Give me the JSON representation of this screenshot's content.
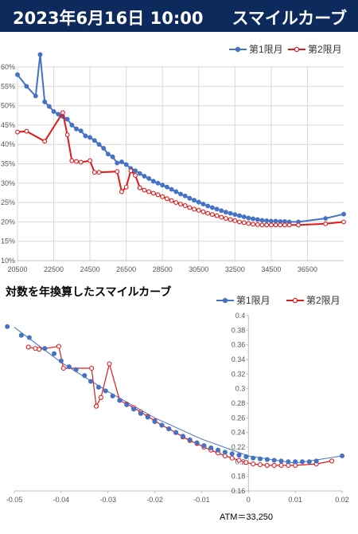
{
  "banner": {
    "date_text": "2023年6月16日 10:00",
    "title": "スマイルカーブ"
  },
  "colors": {
    "banner_bg": "#0d2a5c",
    "series1": "#4472c4",
    "series2": "#e0191b",
    "grid": "#d9d9d9"
  },
  "chart2_title": "対数を年換算したスマイルカーブ",
  "atm_label": "ATM＝33,250",
  "chart_data": [
    {
      "type": "line",
      "title": "",
      "xlabel": "",
      "ylabel": "",
      "xlim": [
        20500,
        38500
      ],
      "ylim": [
        10,
        60
      ],
      "x_ticks": [
        "20500",
        "22500",
        "24500",
        "26500",
        "28500",
        "30500",
        "32500",
        "34500",
        "36500"
      ],
      "y_ticks": [
        "10%",
        "15%",
        "20%",
        "25%",
        "30%",
        "35%",
        "40%",
        "45%",
        "50%",
        "55%",
        "60%"
      ],
      "legend_position": "top-right",
      "grid": true,
      "series": [
        {
          "name": "第1限月",
          "x": [
            20500,
            21000,
            21500,
            21750,
            22000,
            22250,
            22500,
            22750,
            23000,
            23250,
            23500,
            23750,
            24000,
            24250,
            24500,
            24750,
            25000,
            25250,
            25500,
            25750,
            26000,
            26250,
            26500,
            26750,
            27000,
            27250,
            27500,
            27750,
            28000,
            28250,
            28500,
            28750,
            29000,
            29250,
            29500,
            29750,
            30000,
            30250,
            30500,
            30750,
            31000,
            31250,
            31500,
            31750,
            32000,
            32250,
            32500,
            32750,
            33000,
            33250,
            33500,
            33750,
            34000,
            34250,
            34500,
            34750,
            35000,
            35250,
            35500,
            36000,
            37500,
            38500
          ],
          "values": [
            58,
            55,
            52.5,
            63.2,
            51,
            49.8,
            48.5,
            47.8,
            47.2,
            46.5,
            45,
            44,
            43.5,
            42.2,
            41.8,
            41,
            40,
            39,
            37.5,
            36.8,
            35.2,
            35.5,
            34.8,
            33.8,
            33.2,
            32.5,
            31.8,
            31.2,
            30.5,
            30,
            29.5,
            29,
            28.4,
            27.8,
            27.2,
            26.7,
            26.1,
            25.6,
            25.1,
            24.6,
            24.1,
            23.7,
            23.3,
            22.9,
            22.5,
            22.2,
            21.9,
            21.6,
            21.3,
            21,
            20.8,
            20.6,
            20.4,
            20.3,
            20.2,
            20.2,
            20.1,
            20.1,
            20,
            20,
            20.9,
            22
          ]
        },
        {
          "name": "第2限月",
          "x": [
            20500,
            21000,
            22000,
            23000,
            23250,
            23500,
            23750,
            24000,
            24500,
            24750,
            25000,
            26000,
            26250,
            26500,
            26750,
            27000,
            27250,
            27500,
            27750,
            28000,
            28250,
            28500,
            28750,
            29000,
            29250,
            29500,
            29750,
            30000,
            30250,
            30500,
            30750,
            31000,
            31250,
            31500,
            31750,
            32000,
            32250,
            32500,
            32750,
            33000,
            33250,
            33500,
            33750,
            34000,
            34250,
            34500,
            34750,
            35000,
            35250,
            35500,
            36000,
            37500,
            38500
          ],
          "values": [
            43.2,
            43.4,
            40.8,
            48.2,
            42.5,
            35.8,
            35.6,
            35.4,
            35.8,
            32.8,
            32.8,
            33,
            27.8,
            29,
            33.2,
            32,
            28.8,
            28.2,
            27.8,
            27.4,
            27,
            26.5,
            26,
            25.5,
            25,
            24.6,
            24.2,
            23.7,
            23.3,
            23,
            22.6,
            22.2,
            21.9,
            21.6,
            21.2,
            20.9,
            20.6,
            20.3,
            20,
            19.8,
            19.6,
            19.4,
            19.3,
            19.2,
            19.2,
            19.2,
            19.2,
            19.2,
            19.2,
            19.2,
            19.2,
            19.5,
            20
          ]
        }
      ]
    },
    {
      "type": "scatter",
      "title": "対数を年換算したスマイルカーブ",
      "xlabel": "",
      "ylabel": "",
      "xlim": [
        -0.05,
        0.02
      ],
      "ylim": [
        0.16,
        0.4
      ],
      "x_ticks": [
        "-0.05",
        "-0.04",
        "-0.03",
        "-0.02",
        "-0.01",
        "0",
        "0.01",
        "0.02"
      ],
      "y_ticks": [
        "0.16",
        "0.18",
        "0.2",
        "0.22",
        "0.24",
        "0.26",
        "0.28",
        "0.3",
        "0.32",
        "0.34",
        "0.36",
        "0.38",
        "0.4"
      ],
      "legend_position": "top-right",
      "grid": false,
      "series": [
        {
          "name": "第1限月",
          "x": [
            -0.0515,
            -0.0485,
            -0.0468,
            -0.0435,
            -0.0415,
            -0.04,
            -0.0383,
            -0.0368,
            -0.035,
            -0.0337,
            -0.032,
            -0.0305,
            -0.029,
            -0.0275,
            -0.026,
            -0.0245,
            -0.023,
            -0.0215,
            -0.02,
            -0.0185,
            -0.017,
            -0.0155,
            -0.014,
            -0.0125,
            -0.011,
            -0.0095,
            -0.008,
            -0.0065,
            -0.005,
            -0.0035,
            -0.002,
            -0.0005,
            0.001,
            0.0025,
            0.004,
            0.0055,
            0.007,
            0.0085,
            0.01,
            0.0115,
            0.013,
            0.0145,
            0.02
          ],
          "values": [
            0.385,
            0.373,
            0.37,
            0.355,
            0.348,
            0.338,
            0.33,
            0.326,
            0.318,
            0.31,
            0.302,
            0.297,
            0.29,
            0.284,
            0.278,
            0.272,
            0.266,
            0.261,
            0.255,
            0.25,
            0.245,
            0.24,
            0.235,
            0.23,
            0.226,
            0.222,
            0.219,
            0.216,
            0.213,
            0.211,
            0.209,
            0.207,
            0.205,
            0.204,
            0.203,
            0.202,
            0.201,
            0.2,
            0.2,
            0.2,
            0.2,
            0.201,
            0.208
          ]
        },
        {
          "name": "第2限月",
          "x": [
            -0.047,
            -0.0455,
            -0.0447,
            -0.0435,
            -0.0405,
            -0.0395,
            -0.0335,
            -0.0325,
            -0.0315,
            -0.0297,
            -0.0275,
            -0.026,
            -0.0245,
            -0.023,
            -0.0215,
            -0.02,
            -0.0185,
            -0.017,
            -0.0155,
            -0.014,
            -0.0125,
            -0.011,
            -0.0095,
            -0.008,
            -0.0065,
            -0.005,
            -0.0035,
            -0.002,
            -0.0005,
            0.001,
            0.0025,
            0.004,
            0.0055,
            0.007,
            0.0085,
            0.01,
            0.0145,
            0.0178
          ],
          "values": [
            0.357,
            0.355,
            0.354,
            0.355,
            0.358,
            0.328,
            0.328,
            0.276,
            0.288,
            0.334,
            0.284,
            0.279,
            0.274,
            0.268,
            0.262,
            0.256,
            0.25,
            0.245,
            0.24,
            0.234,
            0.229,
            0.225,
            0.22,
            0.216,
            0.212,
            0.208,
            0.205,
            0.202,
            0.199,
            0.197,
            0.196,
            0.195,
            0.195,
            0.195,
            0.195,
            0.195,
            0.197,
            0.201
          ]
        },
        {
          "name": "",
          "x": [
            -0.05,
            -0.04,
            -0.03,
            -0.02,
            -0.01,
            0,
            0.01,
            0.02
          ],
          "values": [
            0.384,
            0.336,
            0.296,
            0.26,
            0.231,
            0.208,
            0.198,
            0.208
          ]
        }
      ]
    }
  ]
}
